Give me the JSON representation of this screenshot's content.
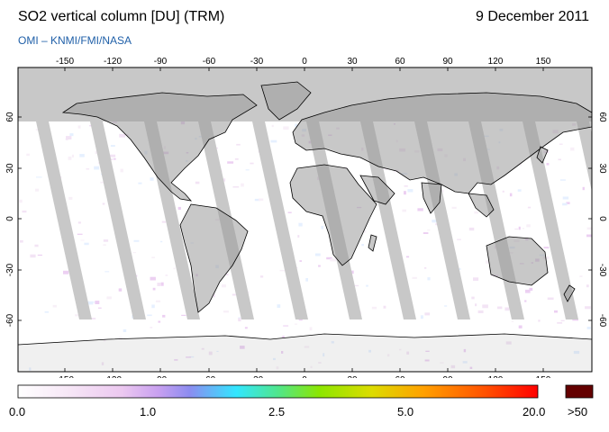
{
  "header": {
    "title": "SO2 vertical column [DU] (TRM)",
    "date": "9 December 2011",
    "subtitle": "OMI  –  KNMI/FMI/NASA"
  },
  "map": {
    "lon_ticks": [
      "-150",
      "-120",
      "-90",
      "-60",
      "-30",
      "0",
      "30",
      "60",
      "90",
      "120",
      "150"
    ],
    "lat_ticks": [
      "60",
      "30",
      "0",
      "-30",
      "-60"
    ],
    "no_data_color": "#c8c8c8",
    "land_color": "#9a9a9a"
  },
  "colorbar": {
    "labels": [
      "0.0",
      "1.0",
      "2.5",
      "5.0",
      "20.0"
    ],
    "overflow_label": ">50",
    "colors": [
      "#ffffff",
      "#f6e6f6",
      "#ecc8f0",
      "#c8a0f0",
      "#8c8cf0",
      "#32e6ff",
      "#50e68c",
      "#8ce600",
      "#dcdc00",
      "#ffa000",
      "#ff5000",
      "#ff0000"
    ],
    "overflow_color": "#640000"
  }
}
